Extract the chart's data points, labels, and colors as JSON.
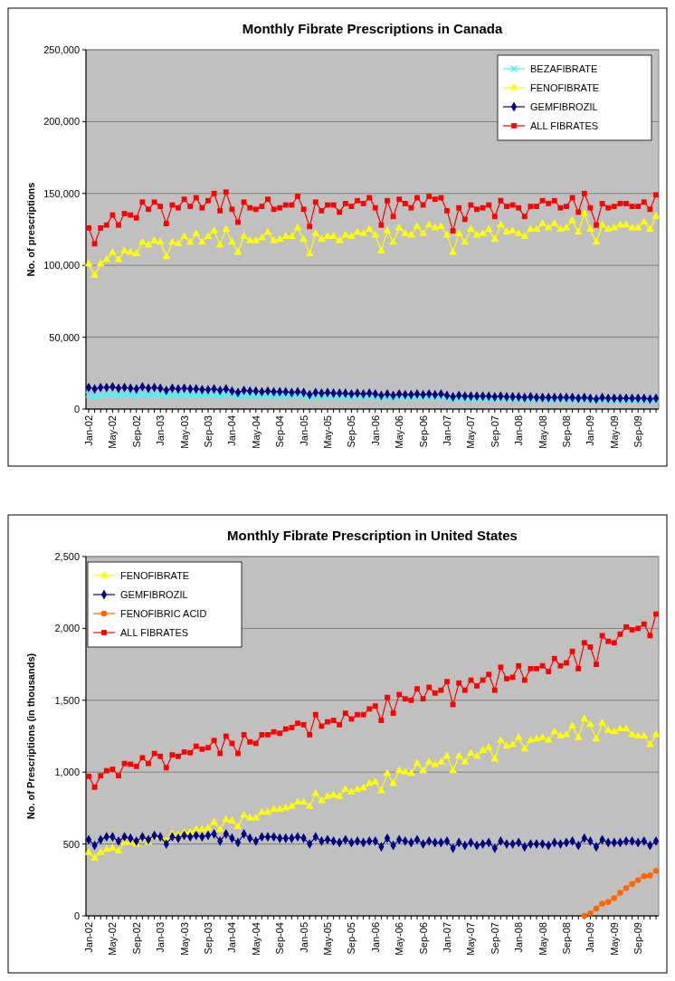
{
  "chart_data": [
    {
      "type": "line",
      "title": "Monthly Fibrate Prescriptions in Canada",
      "ylabel": "No. of prescriptions",
      "categories": [
        "Jan-02",
        null,
        null,
        null,
        "May-02",
        null,
        null,
        null,
        "Sep-02",
        null,
        null,
        null,
        "Jan-03",
        null,
        null,
        null,
        "May-03",
        null,
        null,
        null,
        "Sep-03",
        null,
        null,
        null,
        "Jan-04",
        null,
        null,
        null,
        "May-04",
        null,
        null,
        null,
        "Sep-04",
        null,
        null,
        null,
        "Jan-05",
        null,
        null,
        null,
        "May-05",
        null,
        null,
        null,
        "Sep-05",
        null,
        null,
        null,
        "Jan-06",
        null,
        null,
        null,
        "May-06",
        null,
        null,
        null,
        "Sep-06",
        null,
        null,
        null,
        "Jan-07",
        null,
        null,
        null,
        "May-07",
        null,
        null,
        null,
        "Sep-07",
        null,
        null,
        null,
        "Jan-08",
        null,
        null,
        null,
        "May-08",
        null,
        null,
        null,
        "Sep-08",
        null,
        null,
        null,
        "Jan-09",
        null,
        null,
        null,
        "May-09",
        null,
        null,
        null,
        "Sep-09",
        null,
        null,
        null
      ],
      "ylim": [
        0,
        250000
      ],
      "yticks": [
        {
          "value": 0,
          "label": "0"
        },
        {
          "value": 50000,
          "label": "50,000"
        },
        {
          "value": 100000,
          "label": "100,000"
        },
        {
          "value": 150000,
          "label": "150,000"
        },
        {
          "value": 200000,
          "label": "200,000"
        },
        {
          "value": 250000,
          "label": "250,000"
        }
      ],
      "grid": "y",
      "legend": "top right",
      "series": [
        {
          "name": "BEZAFIBRATE",
          "color": "#33ffff",
          "marker": "cross",
          "values": [
            10000,
            8500,
            9500,
            10000,
            10000,
            9500,
            10000,
            10000,
            9500,
            10500,
            9500,
            10000,
            10000,
            9000,
            10000,
            9500,
            10000,
            9500,
            10000,
            9500,
            9500,
            10000,
            9000,
            10000,
            9500,
            8500,
            9500,
            9000,
            9000,
            9000,
            9500,
            9000,
            9000,
            9000,
            9000,
            9500,
            9000,
            8000,
            9000,
            8500,
            9000,
            8500,
            8500,
            8500,
            8500,
            9000,
            8500,
            9000,
            8500,
            7500,
            8500,
            7500,
            8500,
            8000,
            8000,
            8500,
            8000,
            8500,
            8000,
            8500,
            7500,
            7000,
            7500,
            7000,
            7500,
            7000,
            7500,
            7000,
            7000,
            7500,
            7000,
            7000,
            7000,
            6500,
            7000,
            6500,
            7000,
            6500,
            7000,
            6500,
            6500,
            7000,
            6500,
            7000,
            6500,
            6000,
            6500,
            6000,
            6500,
            6000,
            6500,
            6000,
            6000,
            6500,
            6000,
            6500
          ]
        },
        {
          "name": "FENOFIBRATE",
          "color": "#ffff00",
          "marker": "triangle",
          "values": [
            101000,
            93000,
            101000,
            104000,
            109000,
            104000,
            110000,
            109000,
            108000,
            116000,
            114000,
            117000,
            116000,
            106000,
            116000,
            115000,
            120000,
            116000,
            122000,
            116000,
            120000,
            124000,
            114000,
            125000,
            116000,
            109000,
            120000,
            117000,
            117000,
            119000,
            123000,
            117000,
            118000,
            120000,
            120000,
            126000,
            118000,
            108000,
            122000,
            118000,
            120000,
            120000,
            117000,
            121000,
            120000,
            123000,
            122000,
            125000,
            121000,
            110000,
            124000,
            116000,
            126000,
            122000,
            121000,
            127000,
            122000,
            128000,
            126000,
            127000,
            121000,
            109000,
            122000,
            116000,
            125000,
            121000,
            122000,
            125000,
            118000,
            128000,
            123000,
            124000,
            122000,
            120000,
            125000,
            125000,
            129000,
            126000,
            129000,
            125000,
            126000,
            131000,
            123000,
            136000,
            125000,
            116000,
            128000,
            125000,
            126000,
            128000,
            128000,
            126000,
            126000,
            130000,
            125000,
            134000
          ]
        },
        {
          "name": "GEMFIBROZIL",
          "color": "#000080",
          "marker": "diamond",
          "values": [
            15000,
            14000,
            15000,
            15000,
            15500,
            14500,
            15000,
            14500,
            14000,
            15500,
            14500,
            15000,
            14500,
            13000,
            14500,
            14000,
            14500,
            14000,
            14000,
            13500,
            13500,
            14000,
            13000,
            14000,
            12500,
            11500,
            13000,
            12500,
            12500,
            12000,
            12500,
            12000,
            12000,
            12000,
            11500,
            12000,
            11500,
            10000,
            11500,
            11000,
            11500,
            11000,
            11000,
            11000,
            10500,
            11000,
            10500,
            11000,
            10500,
            9500,
            10500,
            9500,
            10500,
            10000,
            10000,
            10500,
            10000,
            10500,
            10000,
            10500,
            9500,
            8500,
            9500,
            9000,
            9000,
            9000,
            9000,
            9000,
            8500,
            9000,
            8500,
            8500,
            8500,
            8000,
            8500,
            8000,
            8000,
            8000,
            8000,
            8000,
            8000,
            8000,
            7500,
            8000,
            7500,
            7000,
            8000,
            7500,
            7500,
            7500,
            7500,
            7500,
            7500,
            7500,
            7000,
            7500
          ]
        },
        {
          "name": "ALL FIBRATES",
          "color": "#ff0000",
          "marker": "square",
          "values": [
            126000,
            115000,
            126000,
            128000,
            135000,
            128000,
            136000,
            135000,
            133000,
            144000,
            139000,
            144000,
            141000,
            129000,
            142000,
            140000,
            146000,
            141000,
            147000,
            140000,
            145000,
            150000,
            138000,
            151000,
            139000,
            130000,
            144000,
            140000,
            139000,
            141000,
            146000,
            139000,
            140000,
            142000,
            142000,
            148000,
            139000,
            127000,
            144000,
            138000,
            142000,
            142000,
            137000,
            143000,
            141000,
            145000,
            143000,
            147000,
            140000,
            128000,
            145000,
            134000,
            146000,
            143000,
            140000,
            147000,
            142000,
            148000,
            146000,
            147000,
            138000,
            124000,
            140000,
            132000,
            142000,
            139000,
            140000,
            142000,
            134000,
            145000,
            141000,
            142000,
            140000,
            134000,
            141000,
            141000,
            145000,
            143000,
            145000,
            140000,
            141000,
            147000,
            137000,
            150000,
            140000,
            128000,
            143000,
            140000,
            141000,
            143000,
            143000,
            141000,
            141000,
            144000,
            139000,
            149000
          ]
        }
      ]
    },
    {
      "type": "line",
      "title": "Monthly Fibrate Prescription in United States",
      "ylabel": "No. of Prescriptions (in thousands)",
      "categories": [
        "Jan-02",
        null,
        null,
        null,
        "May-02",
        null,
        null,
        null,
        "Sep-02",
        null,
        null,
        null,
        "Jan-03",
        null,
        null,
        null,
        "May-03",
        null,
        null,
        null,
        "Sep-03",
        null,
        null,
        null,
        "Jan-04",
        null,
        null,
        null,
        "May-04",
        null,
        null,
        null,
        "Sep-04",
        null,
        null,
        null,
        "Jan-05",
        null,
        null,
        null,
        "May-05",
        null,
        null,
        null,
        "Sep-05",
        null,
        null,
        null,
        "Jan-06",
        null,
        null,
        null,
        "May-06",
        null,
        null,
        null,
        "Sep-06",
        null,
        null,
        null,
        "Jan-07",
        null,
        null,
        null,
        "May-07",
        null,
        null,
        null,
        "Sep-07",
        null,
        null,
        null,
        "Jan-08",
        null,
        null,
        null,
        "May-08",
        null,
        null,
        null,
        "Sep-08",
        null,
        null,
        null,
        "Jan-09",
        null,
        null,
        null,
        "May-09",
        null,
        null,
        null,
        "Sep-09",
        null,
        null,
        null
      ],
      "ylim": [
        0,
        2500
      ],
      "yticks": [
        {
          "value": 0,
          "label": "0"
        },
        {
          "value": 500,
          "label": "500"
        },
        {
          "value": 1000,
          "label": "1,000"
        },
        {
          "value": 1500,
          "label": "1,500"
        },
        {
          "value": 2000,
          "label": "2,000"
        },
        {
          "value": 2500,
          "label": "2,500"
        }
      ],
      "grid": "y",
      "legend": "top left",
      "series": [
        {
          "name": "FENOFIBRATE",
          "color": "#ffff00",
          "marker": "triangle",
          "values": [
            440,
            400,
            440,
            460,
            470,
            450,
            510,
            510,
            500,
            540,
            510,
            560,
            550,
            520,
            570,
            560,
            580,
            580,
            600,
            600,
            610,
            650,
            600,
            670,
            660,
            620,
            700,
            680,
            680,
            720,
            720,
            740,
            740,
            750,
            760,
            790,
            790,
            760,
            850,
            800,
            830,
            840,
            830,
            880,
            860,
            880,
            890,
            920,
            930,
            870,
            990,
            920,
            1010,
            1000,
            990,
            1060,
            1010,
            1070,
            1050,
            1070,
            1110,
            1010,
            1110,
            1070,
            1130,
            1110,
            1150,
            1170,
            1090,
            1220,
            1180,
            1190,
            1240,
            1160,
            1220,
            1230,
            1240,
            1220,
            1280,
            1250,
            1260,
            1320,
            1240,
            1370,
            1330,
            1230,
            1340,
            1290,
            1280,
            1300,
            1300,
            1260,
            1250,
            1250,
            1190,
            1260
          ]
        },
        {
          "name": "GEMFIBROZIL",
          "color": "#000080",
          "marker": "diamond",
          "values": [
            530,
            490,
            530,
            550,
            550,
            520,
            550,
            540,
            520,
            550,
            530,
            560,
            550,
            500,
            550,
            540,
            560,
            550,
            560,
            550,
            560,
            570,
            520,
            570,
            540,
            510,
            570,
            540,
            520,
            550,
            550,
            550,
            540,
            540,
            540,
            550,
            540,
            500,
            550,
            520,
            530,
            520,
            510,
            530,
            510,
            520,
            510,
            520,
            520,
            480,
            540,
            490,
            530,
            520,
            510,
            530,
            500,
            520,
            510,
            510,
            520,
            470,
            510,
            490,
            510,
            490,
            500,
            510,
            470,
            520,
            500,
            500,
            510,
            480,
            500,
            500,
            500,
            490,
            510,
            500,
            510,
            520,
            490,
            540,
            520,
            480,
            530,
            510,
            510,
            510,
            520,
            520,
            510,
            520,
            490,
            520
          ]
        },
        {
          "name": "FENOFIBRIC ACID",
          "color": "#ff6600",
          "marker": "circle",
          "values": [
            null,
            null,
            null,
            null,
            null,
            null,
            null,
            null,
            null,
            null,
            null,
            null,
            null,
            null,
            null,
            null,
            null,
            null,
            null,
            null,
            null,
            null,
            null,
            null,
            null,
            null,
            null,
            null,
            null,
            null,
            null,
            null,
            null,
            null,
            null,
            null,
            null,
            null,
            null,
            null,
            null,
            null,
            null,
            null,
            null,
            null,
            null,
            null,
            null,
            null,
            null,
            null,
            null,
            null,
            null,
            null,
            null,
            null,
            null,
            null,
            null,
            null,
            null,
            null,
            null,
            null,
            null,
            null,
            null,
            null,
            null,
            null,
            null,
            null,
            null,
            null,
            null,
            null,
            null,
            null,
            null,
            null,
            null,
            0,
            17,
            51,
            85,
            96,
            123,
            160,
            193,
            221,
            249,
            276,
            281,
            313
          ]
        },
        {
          "name": "ALL FIBRATES",
          "color": "#ff0000",
          "marker": "square",
          "values": [
            970,
            895,
            975,
            1010,
            1020,
            975,
            1060,
            1055,
            1040,
            1100,
            1060,
            1130,
            1110,
            1030,
            1120,
            1110,
            1140,
            1135,
            1180,
            1160,
            1170,
            1220,
            1130,
            1250,
            1200,
            1130,
            1260,
            1210,
            1200,
            1260,
            1260,
            1280,
            1270,
            1300,
            1310,
            1340,
            1330,
            1260,
            1400,
            1320,
            1350,
            1360,
            1330,
            1410,
            1370,
            1400,
            1400,
            1440,
            1460,
            1360,
            1520,
            1410,
            1540,
            1510,
            1500,
            1580,
            1510,
            1590,
            1550,
            1570,
            1630,
            1470,
            1620,
            1570,
            1640,
            1600,
            1640,
            1680,
            1570,
            1730,
            1650,
            1660,
            1740,
            1640,
            1720,
            1720,
            1740,
            1700,
            1790,
            1740,
            1760,
            1840,
            1720,
            1900,
            1870,
            1750,
            1950,
            1910,
            1900,
            1960,
            2010,
            1990,
            2000,
            2030,
            1950,
            2100
          ]
        }
      ]
    }
  ]
}
